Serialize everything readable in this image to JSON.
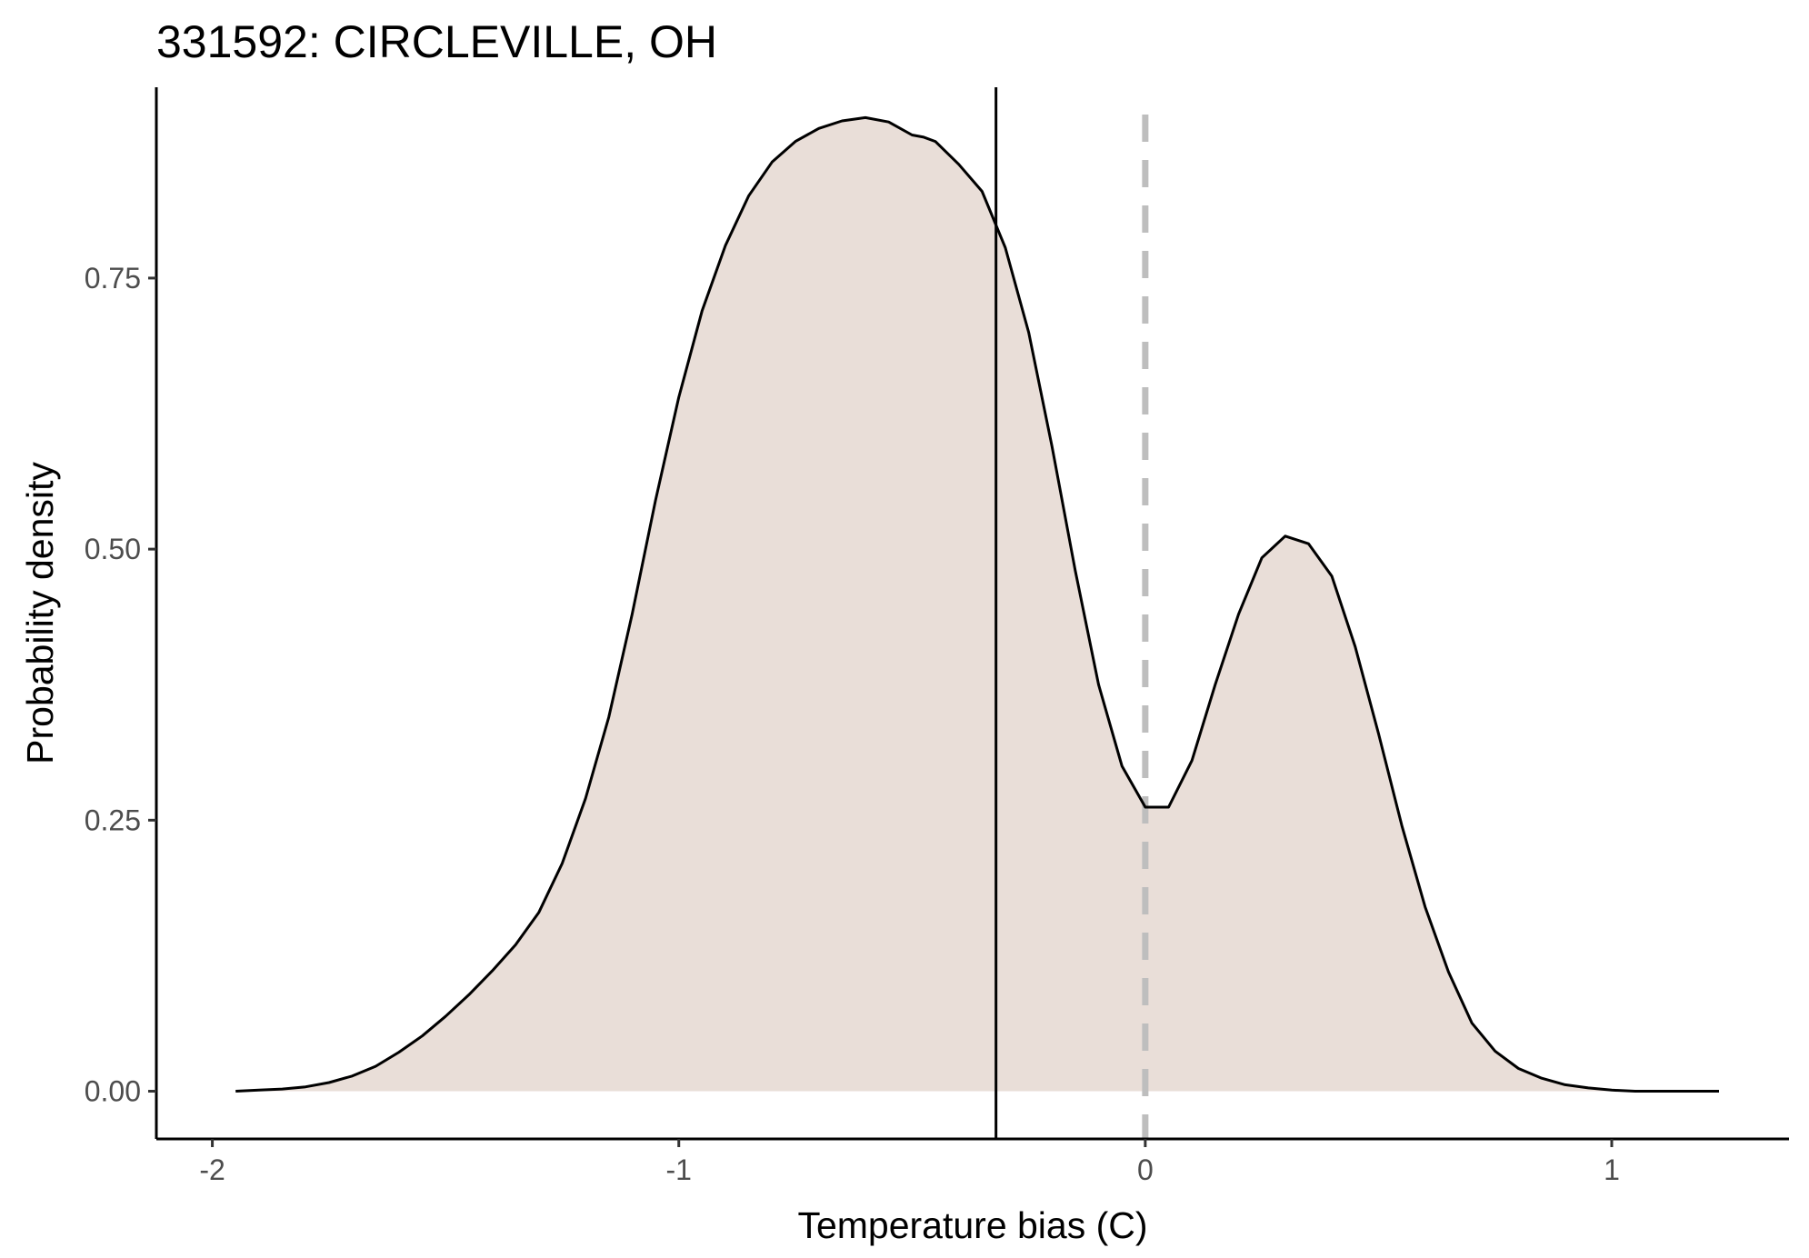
{
  "chart_data": {
    "type": "area",
    "title": "331592: CIRCLEVILLE, OH",
    "xlabel": "Temperature bias (C)",
    "ylabel": "Probability density",
    "xlim": [
      -2.12,
      1.38
    ],
    "ylim": [
      -0.044,
      0.926
    ],
    "x_ticks": [
      -2,
      -1,
      0,
      1
    ],
    "x_tick_labels": [
      "-2",
      "-1",
      "0",
      "1"
    ],
    "y_ticks": [
      0,
      0.25,
      0.5,
      0.75
    ],
    "y_tick_labels": [
      "0.00",
      "0.25",
      "0.50",
      "0.75"
    ],
    "grid": false,
    "legend": "none",
    "fill_color": "#e9ded8",
    "line_color": "#000000",
    "series": [
      {
        "x": [
          -1.95,
          -1.9,
          -1.85,
          -1.8,
          -1.75,
          -1.7,
          -1.65,
          -1.6,
          -1.55,
          -1.5,
          -1.45,
          -1.4,
          -1.35,
          -1.3,
          -1.25,
          -1.2,
          -1.15,
          -1.1,
          -1.05,
          -1.0,
          -0.95,
          -0.9,
          -0.85,
          -0.8,
          -0.75,
          -0.7,
          -0.65,
          -0.6,
          -0.55,
          -0.5,
          -0.475,
          -0.45,
          -0.4,
          -0.35,
          -0.3,
          -0.25,
          -0.2,
          -0.15,
          -0.1,
          -0.05,
          0.0,
          0.05,
          0.1,
          0.15,
          0.2,
          0.25,
          0.3,
          0.35,
          0.4,
          0.45,
          0.5,
          0.55,
          0.6,
          0.65,
          0.7,
          0.75,
          0.8,
          0.85,
          0.9,
          0.95,
          1.0,
          1.05,
          1.1,
          1.15,
          1.2,
          1.23
        ],
        "y": [
          0.0,
          0.001,
          0.002,
          0.004,
          0.008,
          0.014,
          0.023,
          0.036,
          0.051,
          0.069,
          0.089,
          0.111,
          0.135,
          0.165,
          0.21,
          0.27,
          0.345,
          0.44,
          0.545,
          0.64,
          0.72,
          0.78,
          0.826,
          0.857,
          0.876,
          0.888,
          0.895,
          0.898,
          0.894,
          0.882,
          0.88,
          0.876,
          0.855,
          0.83,
          0.778,
          0.7,
          0.595,
          0.48,
          0.375,
          0.3,
          0.262,
          0.262,
          0.305,
          0.375,
          0.44,
          0.492,
          0.512,
          0.505,
          0.475,
          0.41,
          0.33,
          0.245,
          0.17,
          0.11,
          0.063,
          0.037,
          0.021,
          0.012,
          0.006,
          0.003,
          0.001,
          0.0,
          0.0,
          0.0,
          0.0,
          0.0
        ]
      }
    ],
    "vlines": [
      {
        "x": -0.32,
        "style": "solid",
        "color": "#000000"
      },
      {
        "x": 0.0,
        "style": "dashed",
        "color": "#bebebe"
      }
    ]
  }
}
